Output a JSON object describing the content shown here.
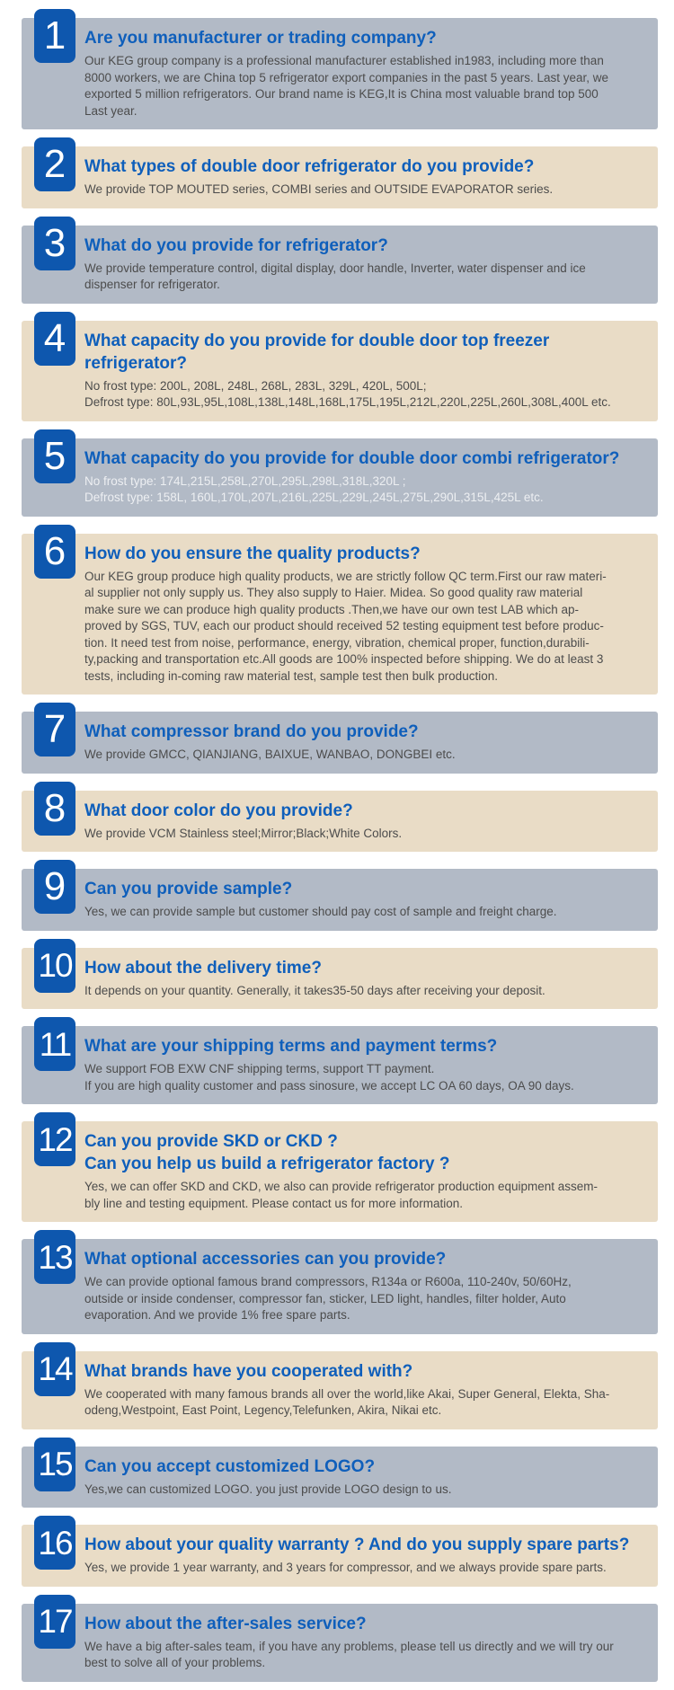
{
  "page": {
    "background": "#ffffff",
    "type": "faq-section"
  },
  "colors": {
    "badge_blue": "#0e57ae",
    "badge_number_white": "#ffffff",
    "question_blue": "#0f5fbb",
    "answer_dark_gray": "#4c4c4c",
    "answer_light": "#edeff2",
    "panel_blue_gray": "#b2bac6",
    "panel_tan": "#e9dcc6"
  },
  "faq": {
    "items": [
      {
        "number": "1",
        "panel_tone": "blue-gray",
        "answer_tone": "dark",
        "question_lines": [
          "Are you manufacturer or trading company?"
        ],
        "answer_lines": [
          "Our KEG group company is a professional manufacturer established in1983, including more than",
          "8000 workers, we are China top 5 refrigerator export companies in the past 5 years. Last year, we",
          "exported 5 million refrigerators. Our brand name is KEG,It is China most valuable brand top 500",
          "Last year."
        ]
      },
      {
        "number": "2",
        "panel_tone": "tan",
        "answer_tone": "dark",
        "question_lines": [
          "What types of double door refrigerator do you provide?"
        ],
        "answer_lines": [
          "We provide TOP MOUTED series, COMBI series and OUTSIDE EVAPORATOR series."
        ]
      },
      {
        "number": "3",
        "panel_tone": "blue-gray",
        "answer_tone": "dark",
        "question_lines": [
          "What do you provide for refrigerator?"
        ],
        "answer_lines": [
          "We provide temperature control, digital display, door handle, Inverter, water dispenser and ice",
          "dispenser for refrigerator."
        ]
      },
      {
        "number": "4",
        "panel_tone": "tan",
        "answer_tone": "dark",
        "question_lines": [
          "What capacity do you provide for double door top freezer refrigerator?"
        ],
        "answer_lines": [
          "No frost type: 200L, 208L, 248L, 268L, 283L, 329L, 420L, 500L;",
          "Defrost type: 80L,93L,95L,108L,138L,148L,168L,175L,195L,212L,220L,225L,260L,308L,400L etc."
        ]
      },
      {
        "number": "5",
        "panel_tone": "blue-gray",
        "answer_tone": "light",
        "question_lines": [
          "What capacity do you provide for double door combi refrigerator?"
        ],
        "answer_lines": [
          "No frost type: 174L,215L,258L,270L,295L,298L,318L,320L ;",
          "Defrost type: 158L, 160L,170L,207L,216L,225L,229L,245L,275L,290L,315L,425L etc."
        ]
      },
      {
        "number": "6",
        "panel_tone": "tan",
        "answer_tone": "dark",
        "question_lines": [
          "How do you ensure the quality products?"
        ],
        "answer_lines": [
          "Our KEG group produce high quality products, we are strictly follow  QC term.First our raw materi-",
          "al supplier not only supply us. They also supply to Haier. Midea. So good quality raw material",
          "make sure we can produce high quality products .Then,we have our own test LAB which  ap-",
          "proved by SGS, TUV, each our product should received 52 testing equipment test before produc-",
          "tion. It need test from noise, performance, energy, vibration, chemical proper, function,durabili-",
          "ty,packing and transportation etc.All goods are 100% inspected before shipping. We do at least 3",
          "tests, including in-coming raw material test, sample test then bulk production."
        ]
      },
      {
        "number": "7",
        "panel_tone": "blue-gray",
        "answer_tone": "dark",
        "question_lines": [
          "What compressor brand do you provide?"
        ],
        "answer_lines": [
          "We provide GMCC, QIANJIANG, BAIXUE, WANBAO, DONGBEI etc."
        ]
      },
      {
        "number": "8",
        "panel_tone": "tan",
        "answer_tone": "dark",
        "question_lines": [
          "What door color do you provide?"
        ],
        "answer_lines": [
          "We provide VCM Stainless steel;Mirror;Black;White Colors."
        ]
      },
      {
        "number": "9",
        "panel_tone": "blue-gray",
        "answer_tone": "dark",
        "question_lines": [
          "Can you provide sample?"
        ],
        "answer_lines": [
          "Yes, we can provide sample but customer should pay cost of sample and freight charge."
        ]
      },
      {
        "number": "10",
        "panel_tone": "tan",
        "answer_tone": "dark",
        "question_lines": [
          "How about the delivery time?"
        ],
        "answer_lines": [
          "It depends on your quantity. Generally, it takes35-50 days after receiving your deposit."
        ]
      },
      {
        "number": "11",
        "panel_tone": "blue-gray",
        "answer_tone": "dark",
        "question_lines": [
          "What are your shipping terms and payment terms?"
        ],
        "answer_lines": [
          "We support FOB EXW CNF shipping terms, support TT payment.",
          "If you are high quality customer and pass sinosure, we accept LC OA 60 days, OA 90 days."
        ]
      },
      {
        "number": "12",
        "panel_tone": "tan",
        "answer_tone": "dark",
        "question_lines": [
          "Can you provide SKD or CKD ?",
          "Can you help us build a refrigerator factory ?"
        ],
        "answer_lines": [
          "Yes, we can offer SKD and CKD, we also can provide refrigerator production equipment assem-",
          "bly line and testing equipment. Please contact us for more information."
        ]
      },
      {
        "number": "13",
        "panel_tone": "blue-gray",
        "answer_tone": "dark",
        "question_lines": [
          "What optional accessories can you provide?"
        ],
        "answer_lines": [
          "We can provide optional famous brand compressors,  R134a or R600a, 110-240v, 50/60Hz,",
          "outside or inside condenser, compressor fan, sticker, LED light, handles, filter holder, Auto",
          "evaporation. And we provide 1% free spare parts."
        ]
      },
      {
        "number": "14",
        "panel_tone": "tan",
        "answer_tone": "dark",
        "question_lines": [
          "What brands have you cooperated with?"
        ],
        "answer_lines": [
          "We cooperated with many famous brands all over the world,like Akai, Super General, Elekta, Sha-",
          "odeng,Westpoint, East Point, Legency,Telefunken, Akira, Nikai etc."
        ]
      },
      {
        "number": "15",
        "panel_tone": "blue-gray",
        "answer_tone": "dark",
        "question_lines": [
          "Can you accept customized LOGO?"
        ],
        "answer_lines": [
          "Yes,we can customized LOGO. you just provide LOGO design to us."
        ]
      },
      {
        "number": "16",
        "panel_tone": "tan",
        "answer_tone": "dark",
        "question_lines": [
          "How about your quality warranty ? And do you supply spare parts?"
        ],
        "answer_lines": [
          "Yes, we provide 1 year warranty, and 3 years for compressor, and we always provide spare parts."
        ]
      },
      {
        "number": "17",
        "panel_tone": "blue-gray",
        "answer_tone": "dark",
        "question_lines": [
          "How about the after-sales service?"
        ],
        "answer_lines": [
          "We have a big after-sales team, if you have any problems, please tell us directly and we will try our",
          "best to solve all of your problems."
        ]
      }
    ]
  }
}
